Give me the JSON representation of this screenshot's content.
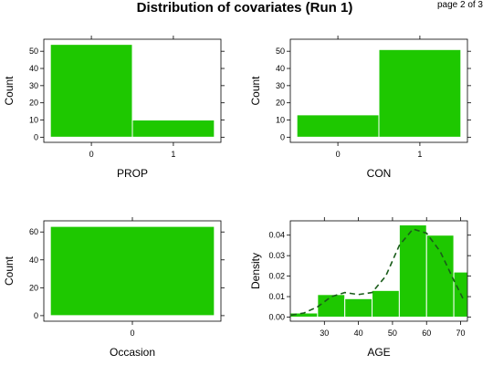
{
  "figure": {
    "title": "Distribution of covariates (Run 1)",
    "page_label": "page 2 of 3",
    "bar_color": "#1ec800",
    "density_color": "#1a5c1a"
  },
  "chart_data": [
    {
      "type": "bar",
      "xlabel": "PROP",
      "ylabel": "Count",
      "categories": [
        "0",
        "1"
      ],
      "values": [
        54,
        10
      ],
      "ylim": [
        -3,
        57
      ],
      "yticks": [
        0,
        10,
        20,
        30,
        40,
        50
      ],
      "grid": false
    },
    {
      "type": "bar",
      "xlabel": "CON",
      "ylabel": "Count",
      "categories": [
        "0",
        "1"
      ],
      "values": [
        13,
        51
      ],
      "ylim": [
        -3,
        57
      ],
      "yticks": [
        0,
        10,
        20,
        30,
        40,
        50
      ],
      "grid": false
    },
    {
      "type": "bar",
      "xlabel": "Occasion",
      "ylabel": "Count",
      "categories": [
        "0"
      ],
      "values": [
        64
      ],
      "ylim": [
        -4,
        68
      ],
      "yticks": [
        0,
        20,
        40,
        60
      ],
      "grid": false
    },
    {
      "type": "bar",
      "subtype": "histogram-with-density",
      "xlabel": "AGE",
      "ylabel": "Density",
      "bins": [
        [
          20,
          28
        ],
        [
          28,
          36
        ],
        [
          36,
          44
        ],
        [
          44,
          52
        ],
        [
          52,
          60
        ],
        [
          60,
          68
        ],
        [
          68,
          76
        ]
      ],
      "values": [
        0.002,
        0.011,
        0.009,
        0.013,
        0.045,
        0.04,
        0.022
      ],
      "density_curve": {
        "x": [
          20,
          24,
          28,
          32,
          36,
          40,
          44,
          48,
          52,
          56,
          60,
          64,
          68,
          71
        ],
        "y": [
          0.001,
          0.002,
          0.005,
          0.01,
          0.012,
          0.011,
          0.012,
          0.02,
          0.035,
          0.043,
          0.041,
          0.032,
          0.018,
          0.008
        ]
      },
      "xlim": [
        20,
        72
      ],
      "ylim": [
        -0.002,
        0.047
      ],
      "xticks": [
        30,
        40,
        50,
        60,
        70
      ],
      "yticks": [
        0.0,
        0.01,
        0.02,
        0.03,
        0.04
      ],
      "grid": false
    }
  ]
}
